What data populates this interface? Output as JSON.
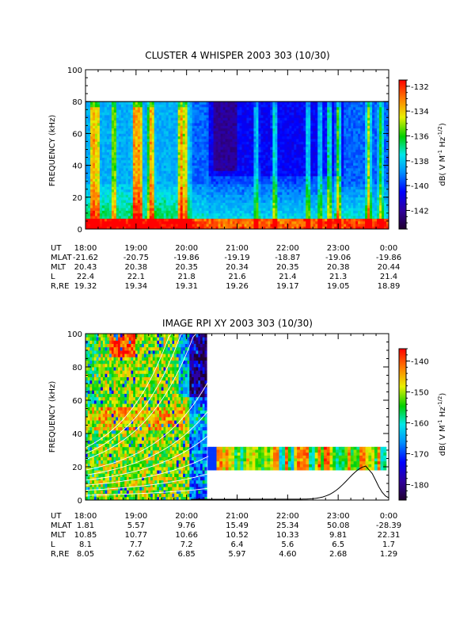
{
  "chart_data": [
    {
      "type": "heatmap",
      "title": "CLUSTER 4 WHISPER 2003 303 (10/30)",
      "ylabel": "FREQUENCY (kHz)",
      "ylim": [
        0,
        100
      ],
      "y_ticks": [
        "0",
        "20",
        "40",
        "60",
        "80",
        "100"
      ],
      "data_top_khz": 80,
      "colorbar": {
        "label_main": "dB( V M",
        "label_sup1": "-1",
        "label_mid": " Hz",
        "label_sup2": "-1/2",
        "label_end": ")",
        "range": [
          -143.5,
          -131.5
        ],
        "ticks": [
          "-132",
          "-134",
          "-136",
          "-138",
          "-140",
          "-142"
        ],
        "tick_values": [
          -132,
          -134,
          -136,
          -138,
          -140,
          -142
        ]
      },
      "x_ticks": [
        "18:00",
        "19:00",
        "20:00",
        "21:00",
        "22:00",
        "23:00",
        "0:00"
      ],
      "ephemeris": [
        {
          "label": "UT",
          "values": [
            "18:00",
            "19:00",
            "20:00",
            "21:00",
            "22:00",
            "23:00",
            "0:00"
          ]
        },
        {
          "label": "MLAT",
          "values": [
            "-21.62",
            "-20.75",
            "-19.86",
            "-19.19",
            "-18.87",
            "-19.06",
            "-19.86"
          ]
        },
        {
          "label": "MLT",
          "values": [
            "20.43",
            "20.38",
            "20.35",
            "20.34",
            "20.35",
            "20.38",
            "20.44"
          ]
        },
        {
          "label": "L",
          "values": [
            "22.4",
            "22.1",
            "21.8",
            "21.6",
            "21.4",
            "21.3",
            "21.4"
          ]
        },
        {
          "label": "R,RE",
          "values": [
            "19.32",
            "19.34",
            "19.31",
            "19.26",
            "19.17",
            "19.05",
            "18.89"
          ]
        }
      ]
    },
    {
      "type": "heatmap",
      "title": "IMAGE RPI XY 2003 303 (10/30)",
      "ylabel": "FREQUENCY (kHz)",
      "ylim": [
        0,
        100
      ],
      "y_ticks": [
        "0",
        "20",
        "40",
        "60",
        "80",
        "100"
      ],
      "colorbar": {
        "label_main": "dB( V M",
        "label_sup1": "-1",
        "label_mid": " Hz",
        "label_sup2": "-1/2",
        "label_end": ")",
        "range": [
          -185,
          -136
        ],
        "ticks": [
          "-140",
          "-150",
          "-160",
          "-170",
          "-180"
        ],
        "tick_values": [
          -140,
          -150,
          -160,
          -170,
          -180
        ]
      },
      "x_ticks": [
        "18:00",
        "19:00",
        "20:00",
        "21:00",
        "22:00",
        "23:00",
        "0:00"
      ],
      "ephemeris": [
        {
          "label": "UT",
          "values": [
            "18:00",
            "19:00",
            "20:00",
            "21:00",
            "22:00",
            "23:00",
            "0:00"
          ]
        },
        {
          "label": "MLAT",
          "values": [
            "1.81",
            "5.57",
            "9.76",
            "15.49",
            "25.34",
            "50.08",
            "-28.39"
          ]
        },
        {
          "label": "MLT",
          "values": [
            "10.85",
            "10.77",
            "10.66",
            "10.52",
            "10.33",
            "9.81",
            "22.31"
          ]
        },
        {
          "label": "L",
          "values": [
            "8.1",
            "7.7",
            "7.2",
            "6.4",
            "5.6",
            "6.5",
            "1.7"
          ]
        },
        {
          "label": "R,RE",
          "values": [
            "8.05",
            "7.62",
            "6.85",
            "5.97",
            "4.60",
            "2.68",
            "1.29"
          ]
        }
      ]
    }
  ]
}
